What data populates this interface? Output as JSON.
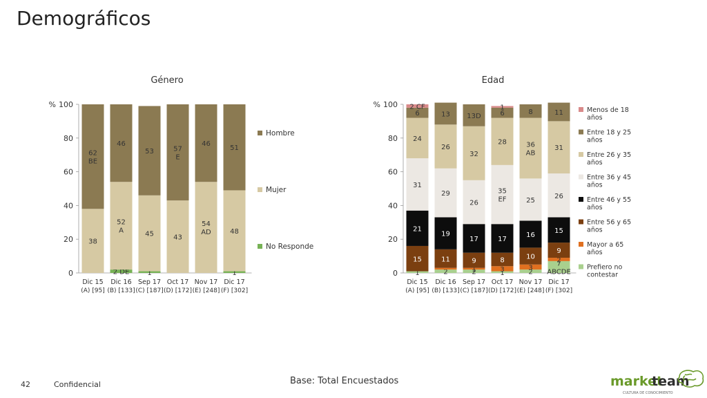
{
  "page": {
    "title": "Demográficos",
    "base_note": "Base: Total Encuestados",
    "page_number": "42",
    "confidential": "Confidencial",
    "logo_text_a": "market",
    "logo_text_b": "team",
    "logo_tagline": "CULTURA DE CONOCIMIENTO"
  },
  "chart_data": [
    {
      "type": "bar",
      "stacked": true,
      "title": "Género",
      "y_unit_label": "%",
      "ylim": [
        0,
        100
      ],
      "yticks": [
        0,
        20,
        40,
        60,
        80,
        100
      ],
      "categories": [
        [
          "Dic 15",
          "(A) [95]"
        ],
        [
          "Dic 16",
          "(B) [133]"
        ],
        [
          "Sep 17",
          "(C) [187]"
        ],
        [
          "Oct 17",
          "(D) [172]"
        ],
        [
          "Nov 17",
          "(E) [248]"
        ],
        [
          "Dic 17",
          "(F) [302]"
        ]
      ],
      "series": [
        {
          "name": "No Responde",
          "color": "#77b255",
          "values": [
            0,
            2,
            1,
            0,
            0,
            1
          ],
          "labels": [
            "",
            "2 DE",
            "1",
            "",
            "",
            "1"
          ]
        },
        {
          "name": "Mujer",
          "color": "#d6c9a3",
          "values": [
            38,
            52,
            45,
            43,
            54,
            48
          ],
          "labels": [
            "38",
            "52\nA",
            "45",
            "43",
            "54\nAD",
            "48"
          ]
        },
        {
          "name": "Hombre",
          "color": "#8b7a52",
          "values": [
            62,
            46,
            53,
            57,
            46,
            51
          ],
          "labels": [
            "62\nBE",
            "46",
            "53",
            "57\nE",
            "46",
            "51"
          ]
        }
      ],
      "legend_order": [
        "Hombre",
        "Mujer",
        "No Responde"
      ]
    },
    {
      "type": "bar",
      "stacked": true,
      "title": "Edad",
      "y_unit_label": "%",
      "ylim": [
        0,
        100
      ],
      "yticks": [
        0,
        20,
        40,
        60,
        80,
        100
      ],
      "categories": [
        [
          "Dic 15",
          "(A) [95]"
        ],
        [
          "Dic 16",
          "(B) [133]"
        ],
        [
          "Sep 17",
          "(C) [187]"
        ],
        [
          "Oct 17",
          "(D) [172]"
        ],
        [
          "Nov 17",
          "(E) [248]"
        ],
        [
          "Dic 17",
          "(F) [302]"
        ]
      ],
      "series": [
        {
          "name": "Prefiero no contestar",
          "color": "#a9d08e",
          "values": [
            1,
            2,
            2,
            1,
            2,
            7
          ],
          "labels": [
            "1",
            "2",
            "2",
            "1",
            "2",
            "7\nABCDE"
          ]
        },
        {
          "name": "Mayor a 65 años",
          "color": "#e07020",
          "values": [
            0,
            1,
            1,
            3,
            3,
            2
          ],
          "labels": [
            "",
            "",
            "1",
            "3",
            "3",
            "2"
          ]
        },
        {
          "name": "Entre 56 y 65 años",
          "color": "#7b3f10",
          "values": [
            15,
            11,
            9,
            8,
            10,
            9
          ],
          "labels": [
            "15",
            "11",
            "9",
            "8",
            "10",
            "9"
          ]
        },
        {
          "name": "Entre 46 y 55 años",
          "color": "#0d0d0d",
          "values": [
            21,
            19,
            17,
            17,
            16,
            15
          ],
          "labels": [
            "21",
            "19",
            "17",
            "17",
            "16",
            "15"
          ]
        },
        {
          "name": "Entre 36 y 45 años",
          "color": "#ece8e3",
          "values": [
            31,
            29,
            26,
            35,
            25,
            26
          ],
          "labels": [
            "31",
            "29",
            "26",
            "35\nEF",
            "25",
            "26"
          ]
        },
        {
          "name": "Entre 26 y 35 años",
          "color": "#d6c9a3",
          "values": [
            24,
            26,
            32,
            28,
            36,
            31
          ],
          "labels": [
            "24",
            "26",
            "32",
            "28",
            "36\nAB",
            "31"
          ]
        },
        {
          "name": "Entre 18 y 25 años",
          "color": "#8b7a52",
          "values": [
            6,
            13,
            13,
            6,
            8,
            11
          ],
          "labels": [
            "6",
            "13",
            "13D",
            "6",
            "8",
            "11"
          ]
        },
        {
          "name": "Menos de 18 años",
          "color": "#d98a8a",
          "values": [
            2,
            0,
            0,
            1,
            0,
            0
          ],
          "labels": [
            "2 CF",
            "",
            "",
            "1",
            "",
            ""
          ]
        }
      ],
      "legend_order": [
        "Menos de 18 años",
        "Entre 18 y 25 años",
        "Entre 26 y 35 años",
        "Entre 36 y 45 años",
        "Entre 46 y 55 años",
        "Entre 56 y 65 años",
        "Mayor a 65 años",
        "Prefiero no contestar"
      ]
    }
  ]
}
